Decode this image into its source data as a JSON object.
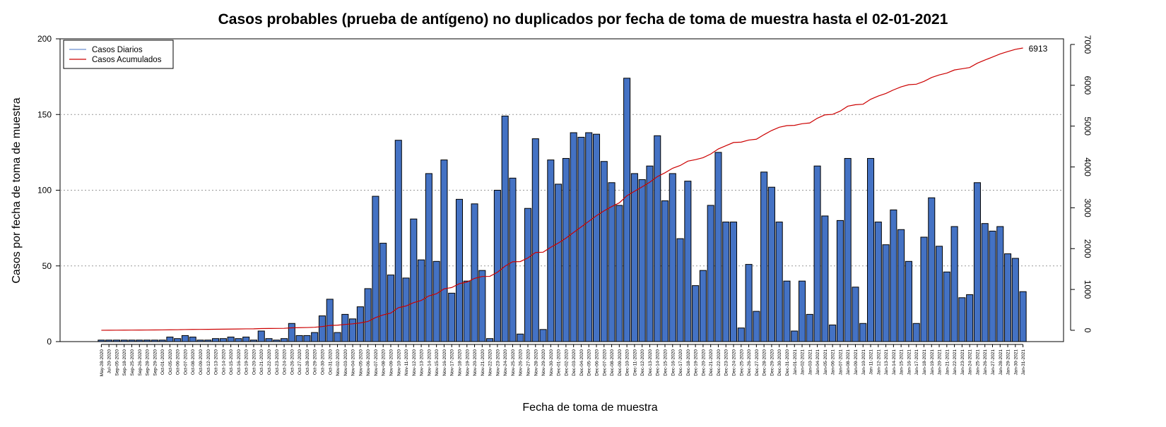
{
  "chart_data": {
    "type": "bar",
    "title": "Casos probables (prueba de antígeno) no duplicados por fecha de toma de muestra hasta el 02-01-2021",
    "xlabel": "Fecha de toma de muestra",
    "ylabel": "Casos por fecha de toma de muestra",
    "categories": [
      "May-28-2020",
      "Jul-20-2020",
      "Sep-05-2020",
      "Sep-18-2020",
      "Sep-25-2020",
      "Sep-26-2020",
      "Sep-28-2020",
      "Sep-29-2020",
      "Oct-01-2020",
      "Oct-05-2020",
      "Oct-06-2020",
      "Oct-07-2020",
      "Oct-08-2020",
      "Oct-09-2020",
      "Oct-12-2020",
      "Oct-13-2020",
      "Oct-14-2020",
      "Oct-15-2020",
      "Oct-16-2020",
      "Oct-19-2020",
      "Oct-20-2020",
      "Oct-21-2020",
      "Oct-22-2020",
      "Oct-23-2020",
      "Oct-24-2020",
      "Oct-26-2020",
      "Oct-27-2020",
      "Oct-28-2020",
      "Oct-29-2020",
      "Oct-30-2020",
      "Oct-31-2020",
      "Nov-02-2020",
      "Nov-03-2020",
      "Nov-04-2020",
      "Nov-05-2020",
      "Nov-06-2020",
      "Nov-07-2020",
      "Nov-08-2020",
      "Nov-09-2020",
      "Nov-10-2020",
      "Nov-11-2020",
      "Nov-12-2020",
      "Nov-13-2020",
      "Nov-14-2020",
      "Nov-15-2020",
      "Nov-16-2020",
      "Nov-17-2020",
      "Nov-18-2020",
      "Nov-19-2020",
      "Nov-20-2020",
      "Nov-21-2020",
      "Nov-22-2020",
      "Nov-23-2020",
      "Nov-24-2020",
      "Nov-25-2020",
      "Nov-26-2020",
      "Nov-27-2020",
      "Nov-28-2020",
      "Nov-29-2020",
      "Nov-30-2020",
      "Dec-01-2020",
      "Dec-02-2020",
      "Dec-03-2020",
      "Dec-04-2020",
      "Dec-05-2020",
      "Dec-06-2020",
      "Dec-07-2020",
      "Dec-08-2020",
      "Dec-09-2020",
      "Dec-10-2020",
      "Dec-11-2020",
      "Dec-12-2020",
      "Dec-13-2020",
      "Dec-14-2020",
      "Dec-15-2020",
      "Dec-16-2020",
      "Dec-17-2020",
      "Dec-18-2020",
      "Dec-19-2020",
      "Dec-20-2020",
      "Dec-21-2020",
      "Dec-22-2020",
      "Dec-23-2020",
      "Dec-24-2020",
      "Dec-25-2020",
      "Dec-26-2020",
      "Dec-27-2020",
      "Dec-28-2020",
      "Dec-29-2020",
      "Dec-30-2020",
      "Dec-31-2020",
      "Jan-01-2021",
      "Jan-02-2021",
      "Jan-03-2021",
      "Jan-04-2021",
      "Jan-05-2021",
      "Jan-06-2021",
      "Jan-07-2021",
      "Jan-08-2021",
      "Jan-09-2021",
      "Jan-10-2021",
      "Jan-11-2021",
      "Jan-12-2021",
      "Jan-13-2021",
      "Jan-14-2021",
      "Jan-15-2021",
      "Jan-16-2021",
      "Jan-17-2021",
      "Jan-18-2021",
      "Jan-19-2021",
      "Jan-20-2021",
      "Jan-21-2021",
      "Jan-22-2021",
      "Jan-23-2021",
      "Jan-24-2021",
      "Jan-25-2021",
      "Jan-26-2021",
      "Jan-27-2021",
      "Jan-28-2021",
      "Jan-29-2021",
      "Jan-30-2021",
      "Jan-31-2021"
    ],
    "series": [
      {
        "name": "Casos Diarios",
        "type": "bar",
        "color": "#4472c4",
        "legend_color": "#6a8fd0",
        "values": [
          1,
          1,
          1,
          1,
          1,
          1,
          1,
          1,
          1,
          3,
          2,
          4,
          3,
          1,
          1,
          2,
          2,
          3,
          2,
          3,
          1,
          7,
          2,
          1,
          2,
          12,
          4,
          4,
          6,
          17,
          28,
          6,
          18,
          15,
          23,
          35,
          96,
          65,
          44,
          133,
          42,
          81,
          54,
          111,
          53,
          120,
          32,
          94,
          40,
          91,
          47,
          2,
          100,
          149,
          108,
          5,
          88,
          134,
          8,
          120,
          104,
          121,
          138,
          135,
          138,
          137,
          119,
          105,
          90,
          174,
          111,
          107,
          116,
          136,
          93,
          111,
          68,
          106,
          37,
          47,
          90,
          125,
          79,
          79,
          9,
          51,
          20,
          112,
          102,
          79,
          40,
          7,
          40,
          18,
          116,
          83,
          11,
          80,
          121,
          36,
          12,
          121,
          79,
          64,
          87,
          74,
          53,
          12,
          69,
          95,
          63,
          46,
          76,
          29,
          31,
          105,
          78,
          73,
          76,
          58,
          55,
          33
        ]
      },
      {
        "name": "Casos Acumulados",
        "type": "line",
        "axis": "y2",
        "color": "#cc0000",
        "values": [
          1,
          2,
          3,
          4,
          5,
          6,
          7,
          8,
          9,
          12,
          14,
          18,
          21,
          22,
          23,
          25,
          27,
          30,
          32,
          35,
          36,
          43,
          45,
          46,
          48,
          60,
          64,
          68,
          74,
          91,
          119,
          125,
          143,
          158,
          181,
          216,
          312,
          377,
          421,
          554,
          596,
          677,
          731,
          842,
          895,
          1015,
          1047,
          1141,
          1181,
          1272,
          1319,
          1321,
          1421,
          1570,
          1678,
          1683,
          1771,
          1905,
          1913,
          2033,
          2137,
          2258,
          2396,
          2531,
          2669,
          2806,
          2925,
          3030,
          3120,
          3294,
          3405,
          3512,
          3628,
          3764,
          3857,
          3968,
          4036,
          4142,
          4179,
          4226,
          4316,
          4441,
          4520,
          4599,
          4608,
          4659,
          4679,
          4791,
          4893,
          4972,
          5012,
          5019,
          5059,
          5077,
          5193,
          5276,
          5287,
          5367,
          5488,
          5524,
          5536,
          5657,
          5736,
          5800,
          5887,
          5961,
          6014,
          6026,
          6095,
          6190,
          6253,
          6299,
          6375,
          6404,
          6435,
          6540,
          6618,
          6691,
          6767,
          6825,
          6880,
          6913
        ]
      }
    ],
    "end_label": "6913",
    "ylim": [
      0,
      200
    ],
    "yticks": [
      0,
      50,
      100,
      150,
      200
    ],
    "y2lim": [
      -277,
      7138
    ],
    "y2ticks": [
      0,
      1000,
      2000,
      3000,
      4000,
      5000,
      6000,
      7000
    ],
    "grid": true,
    "legend": "top-left"
  }
}
